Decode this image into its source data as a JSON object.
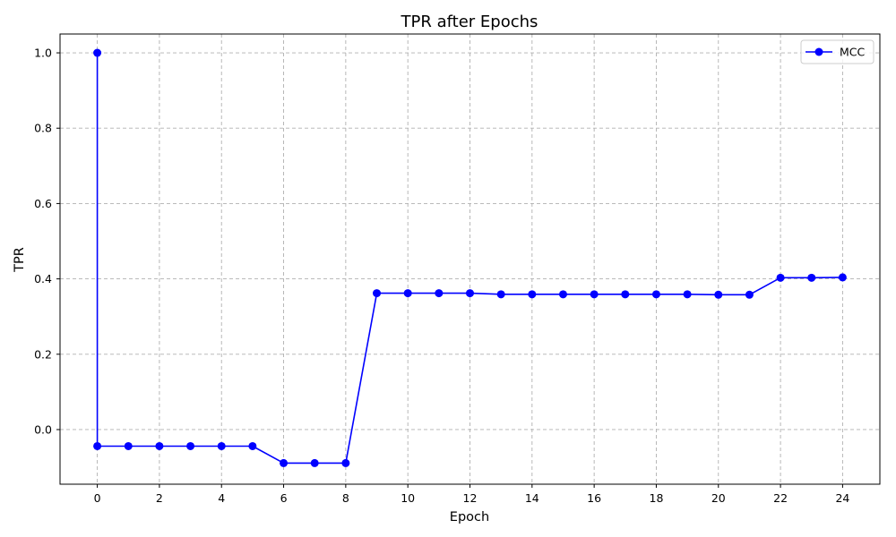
{
  "chart_data": {
    "type": "line",
    "title": "TPR after Epochs",
    "xlabel": "Epoch",
    "ylabel": "TPR",
    "xlim": [
      -1.2,
      25.2
    ],
    "ylim": [
      -0.145,
      1.05
    ],
    "xticks": [
      0,
      2,
      4,
      6,
      8,
      10,
      12,
      14,
      16,
      18,
      20,
      22,
      24
    ],
    "xtick_labels": [
      "0",
      "2",
      "4",
      "6",
      "8",
      "10",
      "12",
      "14",
      "16",
      "18",
      "20",
      "22",
      "24"
    ],
    "yticks": [
      0.0,
      0.2,
      0.4,
      0.6,
      0.8,
      1.0
    ],
    "ytick_labels": [
      "0.0",
      "0.2",
      "0.4",
      "0.6",
      "0.8",
      "1.0"
    ],
    "grid": true,
    "legend_position": "top-right",
    "series": [
      {
        "name": "MCC",
        "color": "#0000ff",
        "marker": "circle",
        "x": [
          0,
          0,
          1,
          2,
          3,
          4,
          5,
          6,
          7,
          8,
          9,
          10,
          11,
          12,
          13,
          14,
          15,
          16,
          17,
          18,
          19,
          20,
          21,
          22,
          23,
          24
        ],
        "y": [
          1.0,
          -0.044,
          -0.044,
          -0.044,
          -0.044,
          -0.044,
          -0.044,
          -0.089,
          -0.089,
          -0.089,
          0.362,
          0.362,
          0.362,
          0.362,
          0.359,
          0.359,
          0.359,
          0.359,
          0.359,
          0.359,
          0.359,
          0.358,
          0.358,
          0.403,
          0.403,
          0.404
        ]
      }
    ]
  }
}
